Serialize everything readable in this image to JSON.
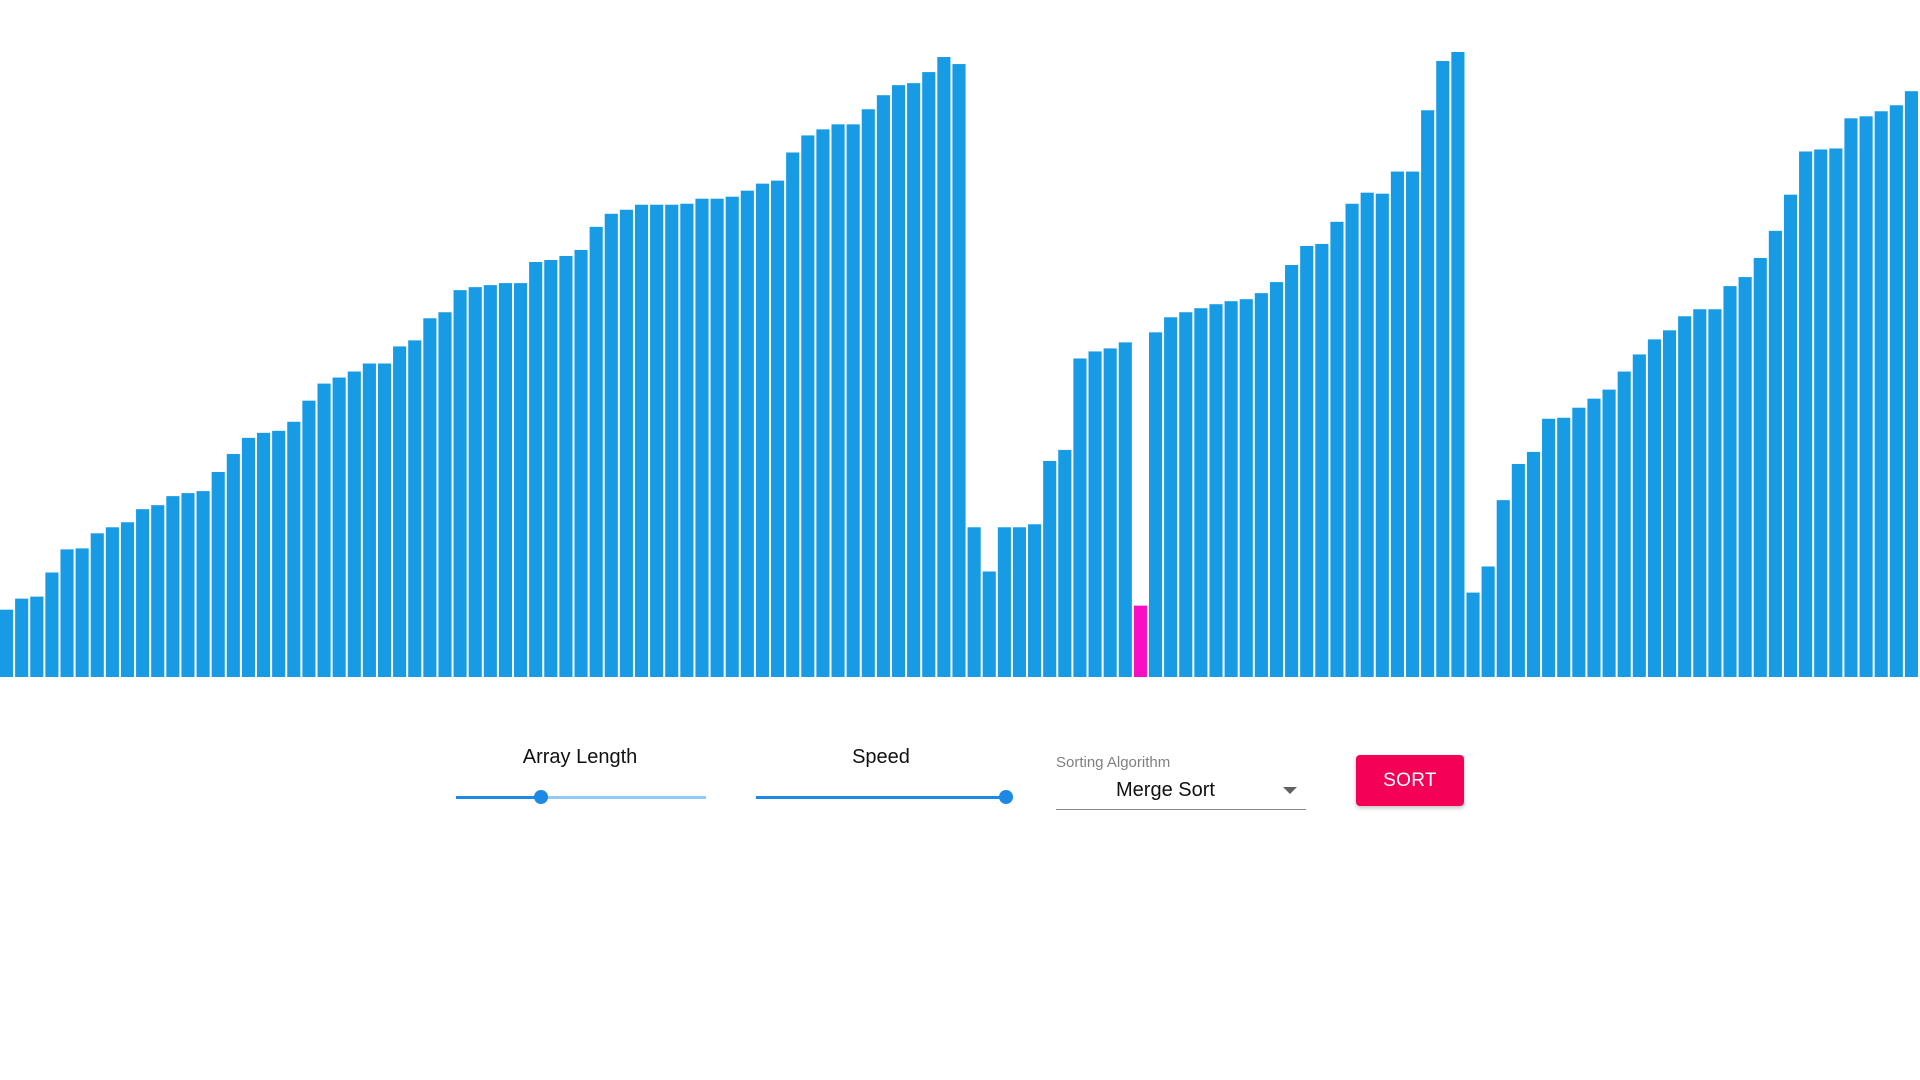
{
  "controls": {
    "array_length_label": "Array Length",
    "array_length_fraction": 0.34,
    "speed_label": "Speed",
    "speed_fraction": 1.0,
    "select_caption": "Sorting Algorithm",
    "select_value": "Merge Sort",
    "sort_label": "SORT"
  },
  "colors": {
    "bar": "#169be4",
    "highlight": "#f90fc3",
    "accent": "#1e88e5",
    "sort_button": "#f50057"
  },
  "chart_data": {
    "type": "bar",
    "highlight_index": 75,
    "values": [
      67,
      78,
      80,
      104,
      127,
      128,
      143,
      149,
      154,
      167,
      171,
      180,
      183,
      185,
      204,
      222,
      238,
      243,
      245,
      254,
      275,
      292,
      298,
      304,
      312,
      312,
      329,
      335,
      357,
      363,
      385,
      388,
      390,
      392,
      392,
      413,
      415,
      419,
      425,
      448,
      461,
      465,
      470,
      470,
      470,
      471,
      476,
      476,
      478,
      484,
      491,
      494,
      522,
      539,
      545,
      550,
      550,
      565,
      579,
      589,
      591,
      602,
      617,
      610,
      149,
      105,
      149,
      149,
      152,
      215,
      226,
      317,
      324,
      327,
      333,
      71,
      343,
      358,
      363,
      367,
      371,
      374,
      376,
      382,
      393,
      410,
      429,
      431,
      453,
      471,
      482,
      481,
      503,
      503,
      564,
      613,
      622,
      84,
      110,
      176,
      212,
      224,
      257,
      258,
      268,
      277,
      286,
      304,
      321,
      336,
      345,
      359,
      366,
      366,
      389,
      398,
      417,
      444,
      480,
      523,
      525,
      526,
      556,
      558,
      563,
      569,
      583
    ]
  }
}
